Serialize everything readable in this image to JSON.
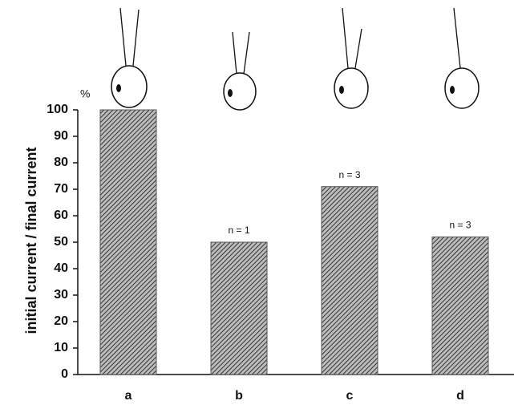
{
  "chart_data": {
    "type": "bar",
    "y_label": "initial current / final current",
    "y_unit": "%",
    "categories": [
      "a",
      "b",
      "c",
      "d"
    ],
    "values": [
      100,
      50,
      71,
      52
    ],
    "bar_notes": [
      null,
      "n = 1",
      "n = 3",
      "n = 3"
    ],
    "color": "#555555",
    "ylim": [
      0,
      100
    ],
    "yticks": [
      0,
      10,
      20,
      30,
      40,
      50,
      60,
      70,
      80,
      90,
      100
    ]
  }
}
